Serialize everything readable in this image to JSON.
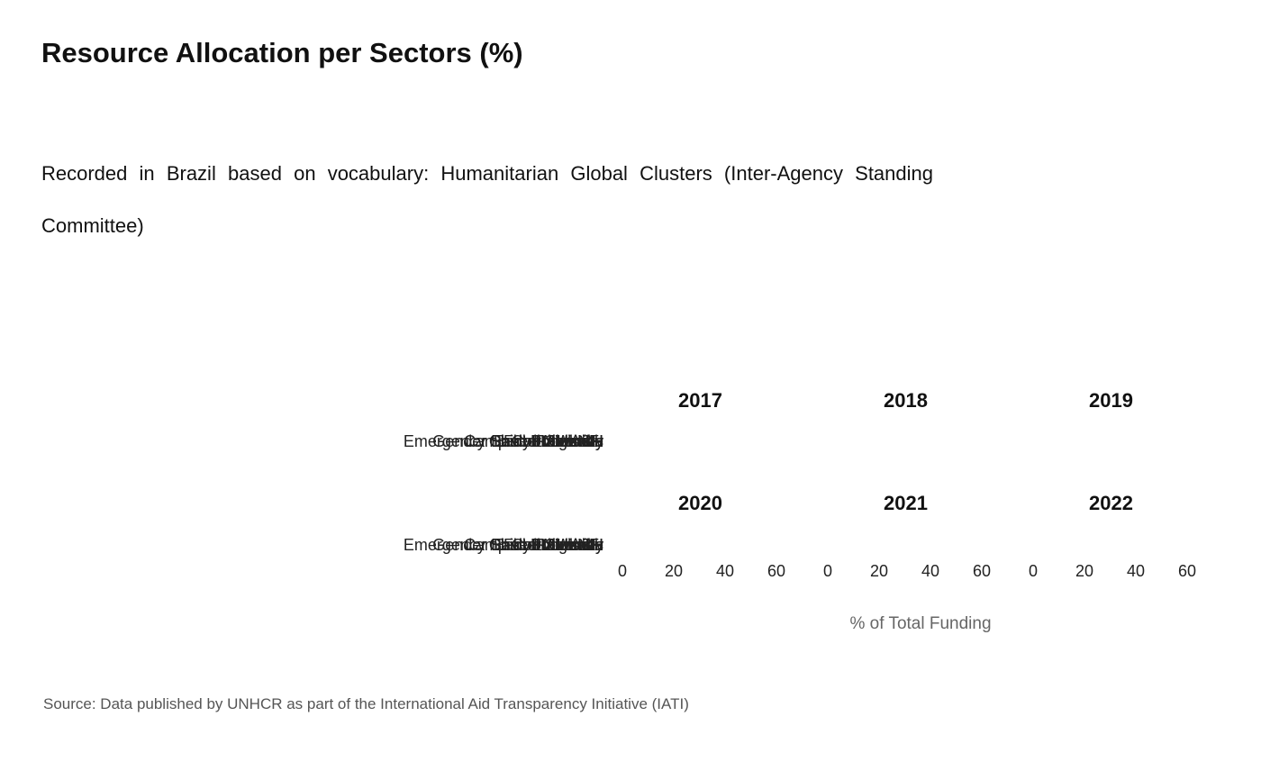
{
  "title": "Resource Allocation per Sectors (%)",
  "subtitle": "Recorded in Brazil based on vocabulary: Humanitarian Global Clusters (Inter-Agency Standing Committee)",
  "source": "Source: Data published by UNHCR as part of the International Aid Transparency Initiative (IATI)",
  "colors": {
    "bar": "#1f77b4",
    "text": "#111111",
    "muted": "#666666"
  },
  "chart_data": {
    "type": "bar",
    "orientation": "horizontal",
    "facets": [
      "2017",
      "2018",
      "2019",
      "2020",
      "2021",
      "2022"
    ],
    "categories": [
      "Emergency Shelter and NFI",
      "Gender Based Violence",
      "Child Protection",
      "Early Recovery",
      "Camp Coordination",
      "Education",
      "Health",
      "Logistics",
      "Nutrition",
      "Protection",
      "Food Security",
      "WASH"
    ],
    "series": [
      {
        "facet": "2017",
        "values": [
          0,
          0,
          0,
          0,
          0,
          0,
          0,
          0,
          0,
          0,
          0,
          0
        ]
      },
      {
        "facet": "2018",
        "values": [
          0,
          0,
          0,
          0,
          0,
          0,
          0,
          0,
          0,
          0,
          0,
          0
        ]
      },
      {
        "facet": "2019",
        "values": [
          0,
          0,
          0,
          0,
          0,
          0,
          0,
          0,
          0,
          0,
          0,
          0
        ]
      },
      {
        "facet": "2020",
        "values": [
          0,
          0,
          0,
          0,
          0,
          0,
          0,
          0,
          0,
          0,
          0,
          0
        ]
      },
      {
        "facet": "2021",
        "values": [
          0,
          0,
          0,
          0,
          0,
          0,
          0,
          0,
          0,
          0,
          0,
          0
        ]
      },
      {
        "facet": "2022",
        "values": [
          0,
          0,
          0,
          0,
          0,
          0,
          0,
          0,
          0,
          0,
          0,
          0
        ]
      }
    ],
    "xticks": [
      0,
      20,
      40,
      60
    ],
    "xlim": [
      0,
      75
    ],
    "xlabel": "% of Total Funding",
    "ylabel": "",
    "grid": false,
    "legend": "none"
  }
}
